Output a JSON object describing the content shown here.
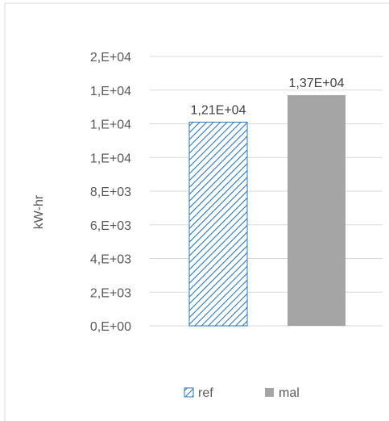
{
  "chart_data": {
    "type": "bar",
    "categories": [
      "ref",
      "mal"
    ],
    "values": [
      12100,
      13700
    ],
    "data_labels": [
      "1,21E+04",
      "1,37E+04"
    ],
    "ylabel": "kW-hr",
    "xlabel": "",
    "ylim": [
      0,
      16000
    ],
    "yticks": [
      0,
      2000,
      4000,
      6000,
      8000,
      10000,
      12000,
      14000,
      16000
    ],
    "ytick_labels": [
      "0,E+00",
      "2,E+03",
      "4,E+03",
      "6,E+03",
      "8,E+03",
      "1,E+04",
      "1,E+04",
      "1,E+04",
      "2,E+04"
    ],
    "grid": true,
    "legend_position": "bottom",
    "series": [
      {
        "name": "ref",
        "color": "#2e75b6",
        "pattern": "diagonal-hatch"
      },
      {
        "name": "mal",
        "color": "#a5a5a5",
        "pattern": "solid"
      }
    ]
  }
}
